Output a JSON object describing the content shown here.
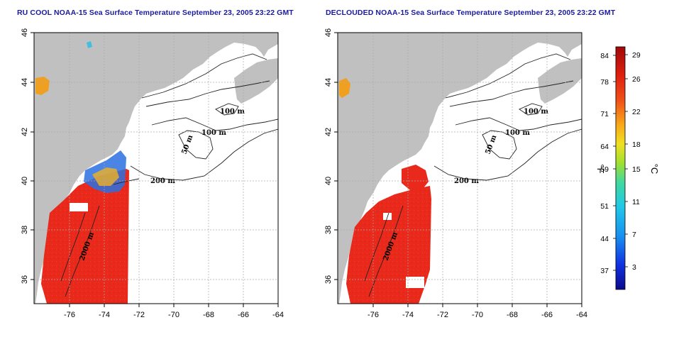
{
  "titles": {
    "left": "RU COOL NOAA-15 Sea Surface Temperature September 23, 2005 23:22 GMT",
    "right": "DECLOUDED NOAA-15 Sea Surface Temperature September 23, 2005 23:22 GMT"
  },
  "axes": {
    "lon_ticks": [
      "-76",
      "-74",
      "-72",
      "-70",
      "-68",
      "-66",
      "-64"
    ],
    "lat_ticks": [
      "46",
      "44",
      "42",
      "40",
      "38",
      "36"
    ]
  },
  "contours": {
    "labels": [
      "100 m",
      "100 m",
      "50 m",
      "200 m",
      "2000 m"
    ]
  },
  "colorbar": {
    "fahrenheit_ticks": [
      "84",
      "78",
      "71",
      "64",
      "59",
      "51",
      "44",
      "37"
    ],
    "celsius_ticks": [
      "29",
      "26",
      "22",
      "18",
      "15",
      "11",
      "7",
      "3"
    ],
    "unit_f": "°F",
    "unit_c": "°C"
  },
  "colors": {
    "land": "#c0c0c0",
    "ocean": "#ffffff",
    "sst_warm": "#e8291c",
    "title": "#1a1aa0"
  }
}
